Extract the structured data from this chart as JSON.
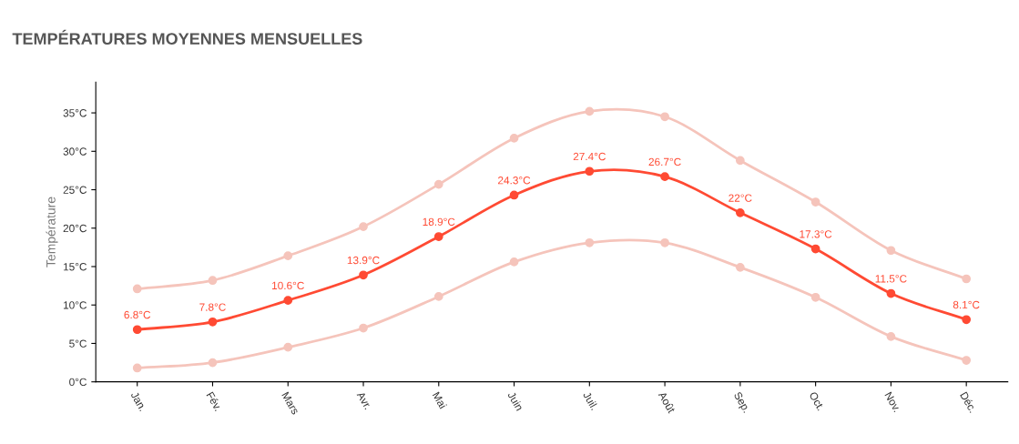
{
  "chart_data": {
    "type": "line",
    "title": "TEMPÉRATURES MOYENNES MENSUELLES",
    "ylabel": "Température",
    "categories": [
      "Jan.",
      "Fév.",
      "Mars",
      "Avr.",
      "Mai",
      "Juin",
      "Juil.",
      "Août",
      "Sep.",
      "Oct.",
      "Nov.",
      "Déc."
    ],
    "series": [
      {
        "color": "#f5c4bb",
        "values": [
          12.1,
          13.2,
          16.4,
          20.2,
          25.7,
          31.7,
          35.2,
          34.5,
          28.8,
          23.4,
          17.1,
          13.4
        ]
      },
      {
        "color": "#f5c4bb",
        "values": [
          1.8,
          2.5,
          4.5,
          7.0,
          11.1,
          15.6,
          18.1,
          18.1,
          14.9,
          11.0,
          5.9,
          2.8
        ]
      },
      {
        "color": "#ff4a33",
        "values": [
          6.8,
          7.8,
          10.6,
          13.9,
          18.9,
          24.3,
          27.4,
          26.7,
          22,
          17.3,
          11.5,
          8.1
        ],
        "value_labels": [
          "6.8°C",
          "7.8°C",
          "10.6°C",
          "13.9°C",
          "18.9°C",
          "24.3°C",
          "27.4°C",
          "26.7°C",
          "22°C",
          "17.3°C",
          "11.5°C",
          "8.1°C"
        ]
      }
    ],
    "ylim": [
      0,
      39
    ],
    "yticks": [
      {
        "value": 0,
        "label": "0°C"
      },
      {
        "value": 5,
        "label": "5°C"
      },
      {
        "value": 10,
        "label": "10°C"
      },
      {
        "value": 15,
        "label": "15°C"
      },
      {
        "value": 20,
        "label": "20°C"
      },
      {
        "value": 25,
        "label": "25°C"
      },
      {
        "value": 30,
        "label": "30°C"
      },
      {
        "value": 35,
        "label": "35°C"
      }
    ],
    "grid": false,
    "legend": false,
    "marker": "circle",
    "line_style": "solid"
  }
}
